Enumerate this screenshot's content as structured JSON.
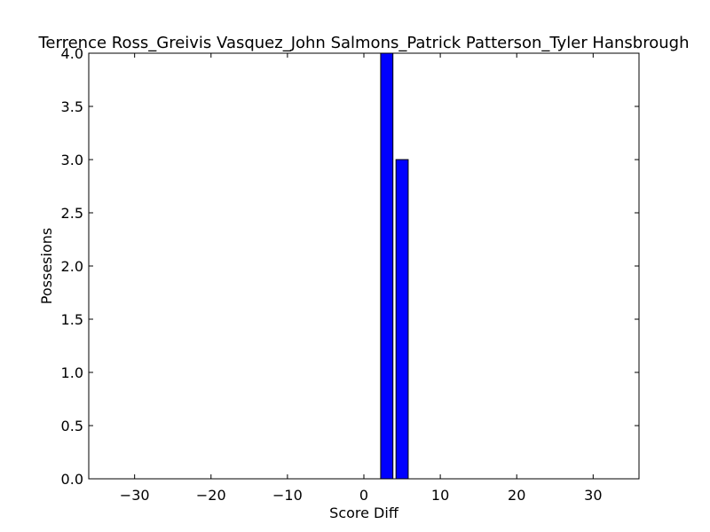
{
  "chart_data": {
    "type": "bar",
    "title": "Terrence Ross_Greivis Vasquez_John Salmons_Patrick Patterson_Tyler Hansbrough",
    "xlabel": "Score Diff",
    "ylabel": "Possesions",
    "xlim": [
      -36,
      36
    ],
    "ylim": [
      0,
      4.0
    ],
    "x_ticks": [
      -30,
      -20,
      -10,
      0,
      10,
      20,
      30
    ],
    "x_tick_labels": [
      "−30",
      "−20",
      "−10",
      "0",
      "10",
      "20",
      "30"
    ],
    "y_ticks": [
      0.0,
      0.5,
      1.0,
      1.5,
      2.0,
      2.5,
      3.0,
      3.5,
      4.0
    ],
    "y_tick_labels": [
      "0.0",
      "0.5",
      "1.0",
      "1.5",
      "2.0",
      "2.5",
      "3.0",
      "3.5",
      "4.0"
    ],
    "bins": [
      {
        "x": 2,
        "value": 4
      },
      {
        "x": 4,
        "value": 3
      }
    ],
    "bar_width": 1.6,
    "bar_color": "#0000ff",
    "grid": false
  }
}
